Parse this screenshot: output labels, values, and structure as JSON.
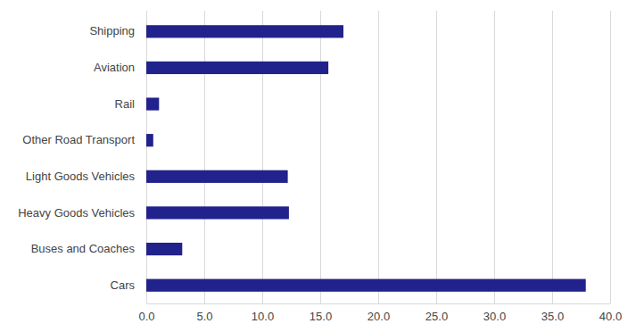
{
  "chart_data": {
    "type": "bar",
    "orientation": "horizontal",
    "categories": [
      "Shipping",
      "Aviation",
      "Rail",
      "Other Road Transport",
      "Light Goods Vehicles",
      "Heavy Goods Vehicles",
      "Buses and Coaches",
      "Cars"
    ],
    "values": [
      17.0,
      15.7,
      1.1,
      0.6,
      12.2,
      12.3,
      3.1,
      37.9
    ],
    "color": "#22228c",
    "xlim": [
      0,
      40
    ],
    "xticks": [
      {
        "value": 0,
        "label": "0.0"
      },
      {
        "value": 5,
        "label": "5.0"
      },
      {
        "value": 10,
        "label": "10.0"
      },
      {
        "value": 15,
        "label": "15.0"
      },
      {
        "value": 20,
        "label": "20.0"
      },
      {
        "value": 25,
        "label": "25.0"
      },
      {
        "value": 30,
        "label": "30.0"
      },
      {
        "value": 35,
        "label": "35.0"
      },
      {
        "value": 40,
        "label": "40.0"
      }
    ],
    "grid": true
  }
}
